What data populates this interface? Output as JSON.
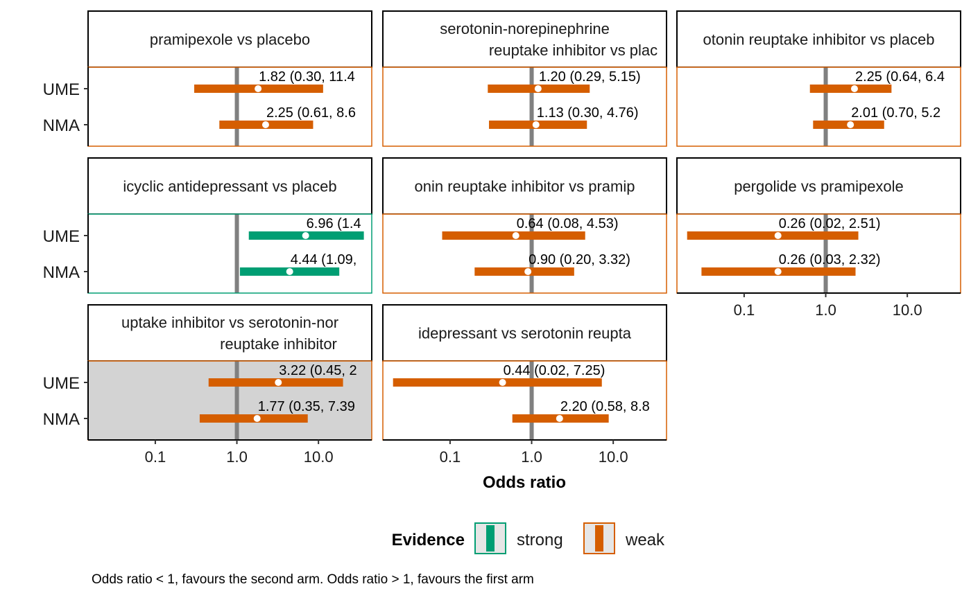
{
  "chart_data": {
    "type": "forest",
    "xlabel": "Odds ratio",
    "x_scale": "log",
    "xlim": [
      0.015,
      45
    ],
    "x_ticks": [
      {
        "value": 0.1,
        "label": "0.1"
      },
      {
        "value": 1.0,
        "label": "1.0"
      },
      {
        "value": 10.0,
        "label": "10.0"
      }
    ],
    "reference_line": 1.0,
    "rows": [
      "UME",
      "NMA"
    ],
    "colors": {
      "strong": "#009E73",
      "weak": "#D55E00",
      "reference": "#808080",
      "inconsistent_bg": "#D3D3D3"
    },
    "panels": [
      {
        "title": "pramipexole vs placebo",
        "evidence": "weak",
        "shaded": false,
        "estimates": [
          {
            "row": "UME",
            "or": 1.82,
            "lower": 0.3,
            "upper": 11.4,
            "label": "1.82 (0.30, 11.4"
          },
          {
            "row": "NMA",
            "or": 2.25,
            "lower": 0.61,
            "upper": 8.6,
            "label": "2.25 (0.61, 8.6"
          }
        ]
      },
      {
        "title": "serotonin-norepinephrine\nreuptake inhibitor vs plac",
        "evidence": "weak",
        "shaded": false,
        "estimates": [
          {
            "row": "UME",
            "or": 1.2,
            "lower": 0.29,
            "upper": 5.15,
            "label": "1.20 (0.29, 5.15)"
          },
          {
            "row": "NMA",
            "or": 1.13,
            "lower": 0.3,
            "upper": 4.76,
            "label": "1.13 (0.30, 4.76)"
          }
        ]
      },
      {
        "title": "otonin reuptake inhibitor vs placeb",
        "evidence": "weak",
        "shaded": false,
        "estimates": [
          {
            "row": "UME",
            "or": 2.25,
            "lower": 0.64,
            "upper": 6.4,
            "label": "2.25 (0.64, 6.4"
          },
          {
            "row": "NMA",
            "or": 2.01,
            "lower": 0.7,
            "upper": 5.2,
            "label": "2.01 (0.70, 5.2"
          }
        ]
      },
      {
        "title": "icyclic antidepressant vs placeb",
        "evidence": "strong",
        "shaded": false,
        "estimates": [
          {
            "row": "UME",
            "or": 6.96,
            "lower": 1.4,
            "upper": 36,
            "label": "6.96 (1.4"
          },
          {
            "row": "NMA",
            "or": 4.44,
            "lower": 1.09,
            "upper": 18,
            "label": "4.44 (1.09,"
          }
        ]
      },
      {
        "title": "onin reuptake inhibitor vs pramip",
        "evidence": "weak",
        "shaded": false,
        "estimates": [
          {
            "row": "UME",
            "or": 0.64,
            "lower": 0.08,
            "upper": 4.53,
            "label": "0.64 (0.08, 4.53)"
          },
          {
            "row": "NMA",
            "or": 0.9,
            "lower": 0.2,
            "upper": 3.32,
            "label": "0.90 (0.20, 3.32)"
          }
        ]
      },
      {
        "title": "pergolide vs pramipexole",
        "evidence": "weak",
        "shaded": false,
        "estimates": [
          {
            "row": "UME",
            "or": 0.26,
            "lower": 0.02,
            "upper": 2.51,
            "label": "0.26 (0.02, 2.51)"
          },
          {
            "row": "NMA",
            "or": 0.26,
            "lower": 0.03,
            "upper": 2.32,
            "label": "0.26 (0.03, 2.32)"
          }
        ]
      },
      {
        "title": "uptake inhibitor vs serotonin-nor\nreuptake inhibitor",
        "evidence": "weak",
        "shaded": true,
        "estimates": [
          {
            "row": "UME",
            "or": 3.22,
            "lower": 0.45,
            "upper": 20,
            "label": "3.22 (0.45, 2"
          },
          {
            "row": "NMA",
            "or": 1.77,
            "lower": 0.35,
            "upper": 7.39,
            "label": "1.77 (0.35, 7.39"
          }
        ]
      },
      {
        "title": "idepressant vs serotonin reupta",
        "evidence": "weak",
        "shaded": false,
        "estimates": [
          {
            "row": "UME",
            "or": 0.44,
            "lower": 0.02,
            "upper": 7.25,
            "label": "0.44 (0.02, 7.25)"
          },
          {
            "row": "NMA",
            "or": 2.2,
            "lower": 0.58,
            "upper": 8.8,
            "label": "2.20 (0.58, 8.8"
          }
        ]
      }
    ],
    "legend": {
      "title": "Evidence",
      "entries": [
        {
          "key": "strong",
          "label": "strong"
        },
        {
          "key": "weak",
          "label": "weak"
        }
      ],
      "placement": "bottom"
    }
  },
  "caption": "Odds ratio < 1, favours the second arm. Odds ratio > 1, favours the first arm"
}
